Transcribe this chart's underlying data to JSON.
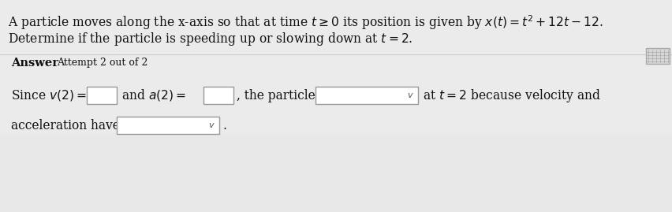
{
  "line1": "A particle moves along the x-axis so that at time $t \\geq 0$ its position is given by $x(t) = t^2 + 12t - 12$.",
  "line2": "Determine if the particle is speeding up or slowing down at $t = 2$.",
  "answer_label": "Answer",
  "attempt_label": "Attempt 2 out of 2",
  "bg_color_top": "#e8e8e8",
  "bg_color_bottom": "#e0e0e0",
  "bg_color_white": "#f5f5f5",
  "white": "#ffffff",
  "box_border": "#bbbbbb",
  "text_color": "#111111",
  "figsize": [
    8.52,
    2.69
  ],
  "dpi": 100
}
